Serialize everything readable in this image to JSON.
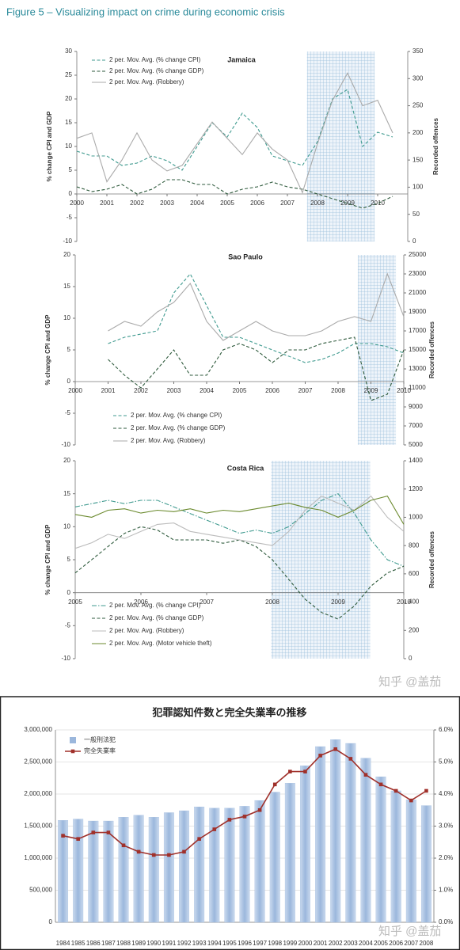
{
  "header": {
    "title": "Figure 5 – Visualizing impact on crime during economic crisis"
  },
  "watermarks": [
    "知乎 @盖茄",
    "知乎 @盖茄"
  ],
  "chart_data": [
    {
      "type": "line",
      "title": "Jamaica",
      "ylabel": "% change CPI and GDP",
      "y2label": "Recorded offences",
      "x": [
        2000,
        2000.5,
        2001,
        2001.5,
        2002,
        2002.5,
        2003,
        2003.5,
        2004,
        2004.5,
        2005,
        2005.5,
        2006,
        2006.5,
        2007,
        2007.5,
        2008,
        2008.5,
        2009,
        2009.5,
        2010,
        2010.5
      ],
      "xlim": [
        2000,
        2011
      ],
      "xticks": [
        2000,
        2001,
        2002,
        2003,
        2004,
        2005,
        2006,
        2007,
        2008,
        2009,
        2010
      ],
      "ylim": [
        -10,
        30
      ],
      "yticks": [
        -10,
        -5,
        0,
        5,
        10,
        15,
        20,
        25,
        30
      ],
      "y2lim": [
        0,
        350
      ],
      "y2ticks": [
        0,
        50,
        100,
        150,
        200,
        250,
        300,
        350
      ],
      "highlight_x": [
        2007.65,
        2009.9
      ],
      "legend": "upper left",
      "series": [
        {
          "name": "2 per. Mov. Avg. (% change CPI)",
          "color": "#3f9a8f",
          "line_style": "dashed",
          "values": [
            9,
            8,
            8,
            6,
            6.5,
            8,
            7,
            5,
            10,
            15,
            12,
            17,
            14,
            8,
            7,
            6,
            11,
            20,
            22,
            10,
            13,
            12
          ]
        },
        {
          "name": "2 per. Mov. Avg. (% change GDP)",
          "color": "#2e5a3c",
          "line_style": "dashed",
          "values": [
            1.5,
            0.5,
            1,
            2,
            0,
            1,
            3,
            3,
            2,
            2,
            0,
            1,
            1.5,
            2.5,
            1.5,
            1,
            0,
            -1,
            -2,
            -3,
            -2,
            -0.5
          ]
        },
        {
          "name": "2 per. Mov. Avg. (Robbery)",
          "color": "#aaaaaa",
          "line_style": "solid",
          "axis": "y2",
          "values": [
            190,
            200,
            110,
            150,
            200,
            150,
            130,
            140,
            180,
            220,
            190,
            160,
            200,
            170,
            150,
            90,
            180,
            260,
            310,
            250,
            260,
            200
          ]
        }
      ]
    },
    {
      "type": "line",
      "title": "Sao Paulo",
      "ylabel": "% change CPI and GDP",
      "y2label": "Recorded offences",
      "x": [
        2001,
        2001.5,
        2002,
        2002.5,
        2003,
        2003.5,
        2004,
        2004.5,
        2005,
        2005.5,
        2006,
        2006.5,
        2007,
        2007.5,
        2008,
        2008.5,
        2009,
        2009.5,
        2010
      ],
      "xlim": [
        2000,
        2010
      ],
      "xticks": [
        2000,
        2001,
        2002,
        2003,
        2004,
        2005,
        2006,
        2007,
        2008,
        2009,
        2010
      ],
      "ylim": [
        -10,
        20
      ],
      "yticks": [
        -10,
        -5,
        0,
        5,
        10,
        15,
        20
      ],
      "y2lim": [
        5000,
        25000
      ],
      "y2ticks": [
        5000,
        7000,
        9000,
        11000,
        13000,
        15000,
        17000,
        19000,
        21000,
        23000,
        25000
      ],
      "highlight_x": [
        2008.6,
        2009.76
      ],
      "legend": "lower left",
      "series": [
        {
          "name": "2 per. Mov. Avg. (% change CPI)",
          "color": "#3f9a8f",
          "line_style": "dashed",
          "values": [
            6,
            7,
            7.5,
            8,
            14,
            17,
            12,
            7,
            7,
            6,
            5,
            4,
            3,
            3.5,
            4.5,
            6,
            6,
            5.5,
            4.5
          ]
        },
        {
          "name": "2 per. Mov. Avg. (% change GDP)",
          "color": "#2e5a3c",
          "line_style": "dashed",
          "values": [
            3.5,
            1,
            -1,
            2,
            5,
            1,
            1,
            5,
            6,
            5,
            3,
            5,
            5,
            6,
            6.5,
            7,
            -3,
            -2,
            5
          ]
        },
        {
          "name": "2 per. Mov. Avg. (Robbery)",
          "color": "#aaaaaa",
          "line_style": "solid",
          "axis": "y2",
          "values": [
            17000,
            18000,
            17500,
            19000,
            20000,
            22000,
            18000,
            16000,
            17000,
            18000,
            17000,
            16500,
            16500,
            17000,
            18000,
            18500,
            18000,
            23000,
            18500
          ]
        }
      ]
    },
    {
      "type": "line",
      "title": "Costa Rica",
      "ylabel": "% change CPI and GDP",
      "y2label": "Recorded offences",
      "x": [
        2005,
        2005.25,
        2005.5,
        2005.75,
        2006,
        2006.25,
        2006.5,
        2006.75,
        2007,
        2007.25,
        2007.5,
        2007.75,
        2008,
        2008.25,
        2008.5,
        2008.75,
        2009,
        2009.25,
        2009.5,
        2009.75,
        2010
      ],
      "xlim": [
        2005,
        2010
      ],
      "xticks": [
        2005,
        2006,
        2007,
        2008,
        2009,
        2010
      ],
      "ylim": [
        -10,
        20
      ],
      "yticks": [
        -10,
        -5,
        0,
        5,
        10,
        15,
        20
      ],
      "y2lim": [
        0,
        1400
      ],
      "y2ticks": [
        0,
        200,
        400,
        600,
        800,
        1000,
        1200,
        1400
      ],
      "highlight_x": [
        2007.98,
        2009.49
      ],
      "legend": "lower left",
      "series": [
        {
          "name": "2 per. Mov. Avg. (% change CPI)",
          "color": "#3f9a8f",
          "line_style": "dashdot",
          "values": [
            13,
            13.5,
            14,
            13.5,
            14,
            14,
            13,
            12,
            11,
            10,
            9,
            9.5,
            9,
            10,
            12,
            14,
            15,
            12,
            8,
            5,
            4
          ]
        },
        {
          "name": "2 per. Mov. Avg. (% change GDP)",
          "color": "#2e5a3c",
          "line_style": "dashed",
          "values": [
            3,
            5,
            7,
            9,
            10,
            9.5,
            8,
            8,
            8,
            7.5,
            8,
            7,
            5,
            2,
            -1,
            -3,
            -4,
            -2,
            1,
            3,
            4
          ]
        },
        {
          "name": "2 per. Mov. Avg. (Robbery)",
          "color": "#bbbbbb",
          "line_style": "solid",
          "axis": "y2",
          "values": [
            780,
            820,
            880,
            850,
            900,
            950,
            960,
            900,
            880,
            860,
            840,
            820,
            800,
            900,
            1050,
            1150,
            1100,
            1050,
            1150,
            1000,
            900
          ]
        },
        {
          "name": "2 per. Mov. Avg. (Motor vehicle theft)",
          "color": "#6b8a2e",
          "line_style": "solid",
          "axis": "y2",
          "values": [
            1020,
            1000,
            1050,
            1060,
            1030,
            1050,
            1040,
            1060,
            1030,
            1050,
            1040,
            1060,
            1080,
            1100,
            1070,
            1050,
            1000,
            1050,
            1120,
            1150,
            950
          ]
        }
      ]
    },
    {
      "type": "combo",
      "title": "犯罪認知件数と完全失業率の推移",
      "categories": [
        "1984",
        "1985",
        "1986",
        "1987",
        "1988",
        "1989",
        "1990",
        "1991",
        "1992",
        "1993",
        "1994",
        "1995",
        "1996",
        "1997",
        "1998",
        "1999",
        "2000",
        "2001",
        "2002",
        "2003",
        "2004",
        "2005",
        "2006",
        "2007",
        "2008"
      ],
      "ylim": [
        0,
        3000000
      ],
      "yticks": [
        0,
        {
          "value": 500000,
          "label": "500,000"
        },
        {
          "value": 1000000,
          "label": "1,000,000"
        },
        {
          "value": 1500000,
          "label": "1,500,000"
        },
        {
          "value": 2000000,
          "label": "2,000,000"
        },
        {
          "value": 2500000,
          "label": "2,500,000"
        },
        {
          "value": 3000000,
          "label": "3,000,000"
        }
      ],
      "y2lim": [
        0,
        6
      ],
      "y2ticks": [
        {
          "value": 0,
          "label": "0.0%"
        },
        {
          "value": 1,
          "label": "1.0%"
        },
        {
          "value": 2,
          "label": "2.0%"
        },
        {
          "value": 3,
          "label": "3.0%"
        },
        {
          "value": 4,
          "label": "4.0%"
        },
        {
          "value": 5,
          "label": "5.0%"
        },
        {
          "value": 6,
          "label": "6.0%"
        }
      ],
      "grid": true,
      "legend": "upper left",
      "series": [
        {
          "name": "一般刑法犯",
          "color": "#9bb7dc",
          "values": [
            1590000,
            1610000,
            1580000,
            1580000,
            1640000,
            1670000,
            1640000,
            1710000,
            1740000,
            1800000,
            1780000,
            1780000,
            1810000,
            1900000,
            2030000,
            2170000,
            2440000,
            2740000,
            2850000,
            2790000,
            2560000,
            2270000,
            2050000,
            1910000,
            1820000
          ]
        },
        {
          "name": "完全失業率",
          "color": "#a0302a",
          "axis": "y2",
          "values": [
            2.7,
            2.6,
            2.8,
            2.8,
            2.4,
            2.2,
            2.1,
            2.1,
            2.2,
            2.6,
            2.9,
            3.2,
            3.3,
            3.5,
            4.3,
            4.7,
            4.7,
            5.2,
            5.4,
            5.1,
            4.6,
            4.3,
            4.1,
            3.8,
            4.1
          ]
        }
      ]
    }
  ]
}
